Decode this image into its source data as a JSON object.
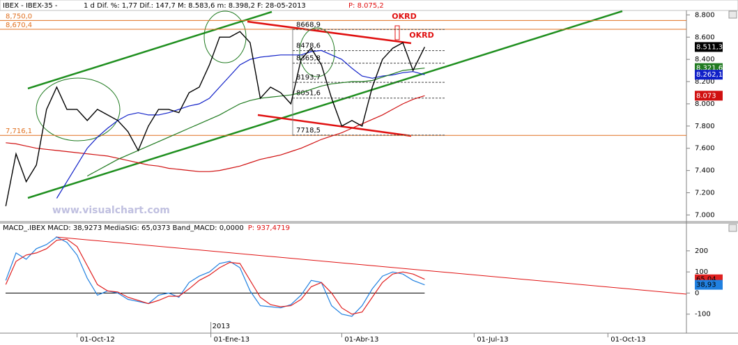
{
  "header": {
    "symbol": "IBEX - IBEX-35 -",
    "stats": "1 d Dif. %: 1,77 Dif.: 147,7 M: 8.583,6 m: 8.398,2 F: 28-05-2013",
    "last": "P: 8.075,2"
  },
  "watermark": "www.visualchart.com",
  "annotations": [
    "OKRD",
    "OKRD"
  ],
  "chart_data": [
    {
      "type": "line",
      "ylim": [
        6940,
        8840
      ],
      "xlim": [
        "09-08-2012",
        "24-11-2013"
      ],
      "yticks": [
        {
          "value": 8800,
          "label": "8.800"
        },
        {
          "value": 8600,
          "label": "8.600"
        },
        {
          "value": 8400,
          "label": "8.400"
        },
        {
          "value": 8200,
          "label": "8.200"
        },
        {
          "value": 8000,
          "label": "8.000"
        },
        {
          "value": 7800,
          "label": "7.800"
        },
        {
          "value": 7600,
          "label": "7.600"
        },
        {
          "value": 7400,
          "label": "7.400"
        },
        {
          "value": 7200,
          "label": "7.200"
        },
        {
          "value": 7000,
          "label": "7.000"
        }
      ],
      "x": [
        "13-08-2012",
        "20-08-2012",
        "27-08-2012",
        "03-09-2012",
        "10-09-2012",
        "17-09-2012",
        "24-09-2012",
        "01-10-2012",
        "08-10-2012",
        "15-10-2012",
        "22-10-2012",
        "29-10-2012",
        "05-11-2012",
        "12-11-2012",
        "19-11-2012",
        "26-11-2012",
        "03-12-2012",
        "10-12-2012",
        "17-12-2012",
        "24-12-2012",
        "31-12-2012",
        "07-01-2013",
        "14-01-2013",
        "21-01-2013",
        "28-01-2013",
        "04-02-2013",
        "11-02-2013",
        "18-02-2013",
        "25-02-2013",
        "04-03-2013",
        "11-03-2013",
        "18-03-2013",
        "25-03-2013",
        "01-04-2013",
        "08-04-2013",
        "15-04-2013",
        "22-04-2013",
        "29-04-2013",
        "06-05-2013",
        "13-05-2013",
        "20-05-2013",
        "28-05-2013"
      ],
      "series": [
        {
          "name": "IBEX",
          "color": "#000000",
          "label_text": "#ffffff",
          "values": [
            7080,
            7550,
            7300,
            7450,
            7950,
            8150,
            7950,
            7950,
            7850,
            7950,
            7900,
            7850,
            7750,
            7580,
            7800,
            7950,
            7950,
            7920,
            8100,
            8150,
            8350,
            8600,
            8600,
            8650,
            8550,
            8050,
            8150,
            8100,
            8000,
            8400,
            8500,
            8350,
            8050,
            7800,
            7850,
            7800,
            8150,
            8400,
            8500,
            8550,
            8300,
            8511.3
          ],
          "value_labels": [
            null,
            null,
            null,
            null,
            null,
            null,
            null,
            null,
            null,
            null,
            null,
            null,
            null,
            null,
            null,
            null,
            null,
            null,
            null,
            null,
            null,
            null,
            null,
            null,
            null,
            null,
            null,
            null,
            null,
            null,
            null,
            null,
            null,
            null,
            null,
            null,
            null,
            null,
            null,
            null,
            null,
            "8.511,3"
          ]
        },
        {
          "name": "MA green",
          "color": "#1f7a1f",
          "label_text": "#ffffff",
          "values": [
            null,
            null,
            null,
            null,
            null,
            null,
            null,
            null,
            7350,
            7400,
            7450,
            7500,
            7540,
            7580,
            7620,
            7660,
            7700,
            7740,
            7780,
            7820,
            7860,
            7900,
            7950,
            8000,
            8030,
            8050,
            8060,
            8070,
            8080,
            8100,
            8130,
            8160,
            8180,
            8190,
            8200,
            8200,
            8210,
            8240,
            8270,
            8300,
            8310,
            8321.6
          ],
          "value_labels": [
            null,
            null,
            null,
            null,
            null,
            null,
            null,
            null,
            null,
            null,
            null,
            null,
            null,
            null,
            null,
            null,
            null,
            null,
            null,
            null,
            null,
            null,
            null,
            null,
            null,
            null,
            null,
            null,
            null,
            null,
            null,
            null,
            null,
            null,
            null,
            null,
            null,
            null,
            null,
            null,
            null,
            "8.321,6"
          ]
        },
        {
          "name": "MA blue",
          "color": "#1020c8",
          "label_text": "#ffffff",
          "values": [
            null,
            null,
            null,
            null,
            null,
            7150,
            7300,
            7450,
            7600,
            7700,
            7780,
            7850,
            7900,
            7920,
            7900,
            7900,
            7920,
            7950,
            7980,
            8000,
            8050,
            8150,
            8250,
            8350,
            8400,
            8420,
            8430,
            8440,
            8440,
            8440,
            8470,
            8480,
            8440,
            8400,
            8320,
            8250,
            8230,
            8250,
            8260,
            8280,
            8290,
            8262.1
          ],
          "value_labels": [
            null,
            null,
            null,
            null,
            null,
            null,
            null,
            null,
            null,
            null,
            null,
            null,
            null,
            null,
            null,
            null,
            null,
            null,
            null,
            null,
            null,
            null,
            null,
            null,
            null,
            null,
            null,
            null,
            null,
            null,
            null,
            null,
            null,
            null,
            null,
            null,
            null,
            null,
            null,
            null,
            null,
            "8.262,1"
          ]
        },
        {
          "name": "MA red",
          "color": "#d01010",
          "label_text": "#ffffff",
          "values": [
            7650,
            7640,
            7620,
            7600,
            7590,
            7580,
            7570,
            7560,
            7550,
            7540,
            7530,
            7510,
            7490,
            7470,
            7450,
            7440,
            7420,
            7410,
            7400,
            7390,
            7390,
            7400,
            7420,
            7440,
            7470,
            7500,
            7520,
            7540,
            7570,
            7600,
            7640,
            7680,
            7710,
            7740,
            7780,
            7820,
            7860,
            7900,
            7950,
            8000,
            8040,
            8073
          ],
          "value_labels": [
            null,
            null,
            null,
            null,
            null,
            null,
            null,
            null,
            null,
            null,
            null,
            null,
            null,
            null,
            null,
            null,
            null,
            null,
            null,
            null,
            null,
            null,
            null,
            null,
            null,
            null,
            null,
            null,
            null,
            null,
            null,
            null,
            null,
            null,
            null,
            null,
            null,
            null,
            null,
            null,
            null,
            "8.073"
          ]
        }
      ],
      "levels": [
        {
          "value": 8750,
          "label": "8,750,0"
        },
        {
          "value": 8670.4,
          "label": "8,670,4"
        },
        {
          "value": 7716.1,
          "label": "7,716,1"
        }
      ],
      "level_color": "#e07020",
      "fib_levels": [
        {
          "value": 8668.9,
          "label": "8668,9"
        },
        {
          "value": 8478.6,
          "label": "8478,6"
        },
        {
          "value": 8365.8,
          "label": "8365,8"
        },
        {
          "value": 8193.7,
          "label": "8193,7"
        },
        {
          "value": 8051.6,
          "label": "8051,6"
        },
        {
          "value": 7718.5,
          "label": "7718,5"
        }
      ]
    },
    {
      "type": "line",
      "ylim": [
        -190,
        325
      ],
      "xlim": [
        "09-08-2012",
        "24-11-2013"
      ],
      "title": "MACD_.IBEX MACD: 38,9273 MediaSIG: 65,0373 Band_MACD: 0,0000",
      "title_extra": "P: 937,4719",
      "yticks": [
        200,
        100,
        0,
        -100
      ],
      "band": 0,
      "xticks": [
        {
          "value": "01-10-2012",
          "label": "01-Oct-12"
        },
        {
          "value": "01-01-2013",
          "label": "01-Ene-13"
        },
        {
          "value": "01-04-2013",
          "label": "01-Abr-13"
        },
        {
          "value": "01-07-2013",
          "label": "01-Jul-13"
        },
        {
          "value": "01-10-2013",
          "label": "01-Oct-13"
        }
      ],
      "year_label": "2013",
      "x": [
        "13-08-2012",
        "20-08-2012",
        "27-08-2012",
        "03-09-2012",
        "10-09-2012",
        "17-09-2012",
        "24-09-2012",
        "01-10-2012",
        "08-10-2012",
        "15-10-2012",
        "22-10-2012",
        "29-10-2012",
        "05-11-2012",
        "12-11-2012",
        "19-11-2012",
        "26-11-2012",
        "03-12-2012",
        "10-12-2012",
        "17-12-2012",
        "24-12-2012",
        "31-12-2012",
        "07-01-2013",
        "14-01-2013",
        "21-01-2013",
        "28-01-2013",
        "04-02-2013",
        "11-02-2013",
        "18-02-2013",
        "25-02-2013",
        "04-03-2013",
        "11-03-2013",
        "18-03-2013",
        "25-03-2013",
        "01-04-2013",
        "08-04-2013",
        "15-04-2013",
        "22-04-2013",
        "29-04-2013",
        "06-05-2013",
        "13-05-2013",
        "20-05-2013",
        "28-05-2013"
      ],
      "series": [
        {
          "name": "MediaSIG",
          "color": "#e02020",
          "label_text": "#000000",
          "values": [
            40,
            150,
            180,
            190,
            210,
            250,
            255,
            220,
            130,
            40,
            10,
            5,
            -20,
            -35,
            -50,
            -35,
            -15,
            -15,
            20,
            60,
            85,
            120,
            145,
            140,
            60,
            -20,
            -55,
            -65,
            -60,
            -30,
            30,
            50,
            0,
            -70,
            -100,
            -90,
            -20,
            50,
            90,
            100,
            90,
            65.04
          ],
          "value_labels": [
            null,
            null,
            null,
            null,
            null,
            null,
            null,
            null,
            null,
            null,
            null,
            null,
            null,
            null,
            null,
            null,
            null,
            null,
            null,
            null,
            null,
            null,
            null,
            null,
            null,
            null,
            null,
            null,
            null,
            null,
            null,
            null,
            null,
            null,
            null,
            null,
            null,
            null,
            null,
            null,
            null,
            "65,04"
          ]
        },
        {
          "name": "MACD",
          "color": "#2080e0",
          "label_text": "#000000",
          "values": [
            60,
            190,
            160,
            210,
            230,
            265,
            240,
            180,
            70,
            -10,
            10,
            0,
            -30,
            -40,
            -50,
            -10,
            0,
            -20,
            50,
            80,
            100,
            140,
            150,
            120,
            10,
            -60,
            -65,
            -70,
            -55,
            -10,
            60,
            50,
            -60,
            -100,
            -110,
            -60,
            20,
            80,
            100,
            90,
            60,
            38.93
          ],
          "value_labels": [
            null,
            null,
            null,
            null,
            null,
            null,
            null,
            null,
            null,
            null,
            null,
            null,
            null,
            null,
            null,
            null,
            null,
            null,
            null,
            null,
            null,
            null,
            null,
            null,
            null,
            null,
            null,
            null,
            null,
            null,
            null,
            null,
            null,
            null,
            null,
            null,
            null,
            null,
            null,
            null,
            null,
            "38,93"
          ]
        }
      ]
    }
  ]
}
